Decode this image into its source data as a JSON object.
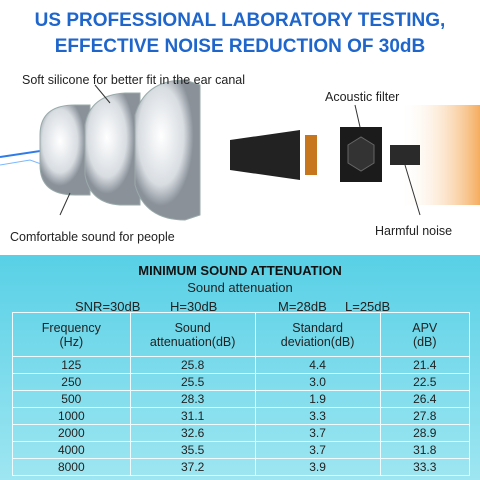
{
  "header": {
    "title_lines": [
      "US PROFESSIONAL LABORATORY TESTING,",
      "EFFECTIVE NOISE REDUCTION OF 30dB"
    ]
  },
  "callouts": {
    "silicone": "Soft silicone for better fit in the ear canal",
    "filter": "Acoustic filter",
    "comfort": "Comfortable sound for people",
    "noise": "Harmful noise"
  },
  "table": {
    "title": "MINIMUM SOUND ATTENUATION",
    "subtitle": "Sound attenuation",
    "ratings": [
      "SNR=30dB",
      "H=30dB",
      "M=28dB",
      "L=25dB"
    ],
    "columns": [
      [
        "Frequency",
        "(Hz)"
      ],
      [
        "Sound",
        "attenuation(dB)"
      ],
      [
        "Standard",
        "deviation(dB)"
      ],
      [
        "APV",
        "(dB)"
      ]
    ],
    "rows": [
      [
        "125",
        "25.8",
        "4.4",
        "21.4"
      ],
      [
        "250",
        "25.5",
        "3.0",
        "22.5"
      ],
      [
        "500",
        "28.3",
        "1.9",
        "26.4"
      ],
      [
        "1000",
        "31.1",
        "3.3",
        "27.8"
      ],
      [
        "2000",
        "32.6",
        "3.7",
        "28.9"
      ],
      [
        "4000",
        "35.5",
        "3.7",
        "31.8"
      ],
      [
        "8000",
        "37.2",
        "3.9",
        "33.3"
      ]
    ]
  }
}
